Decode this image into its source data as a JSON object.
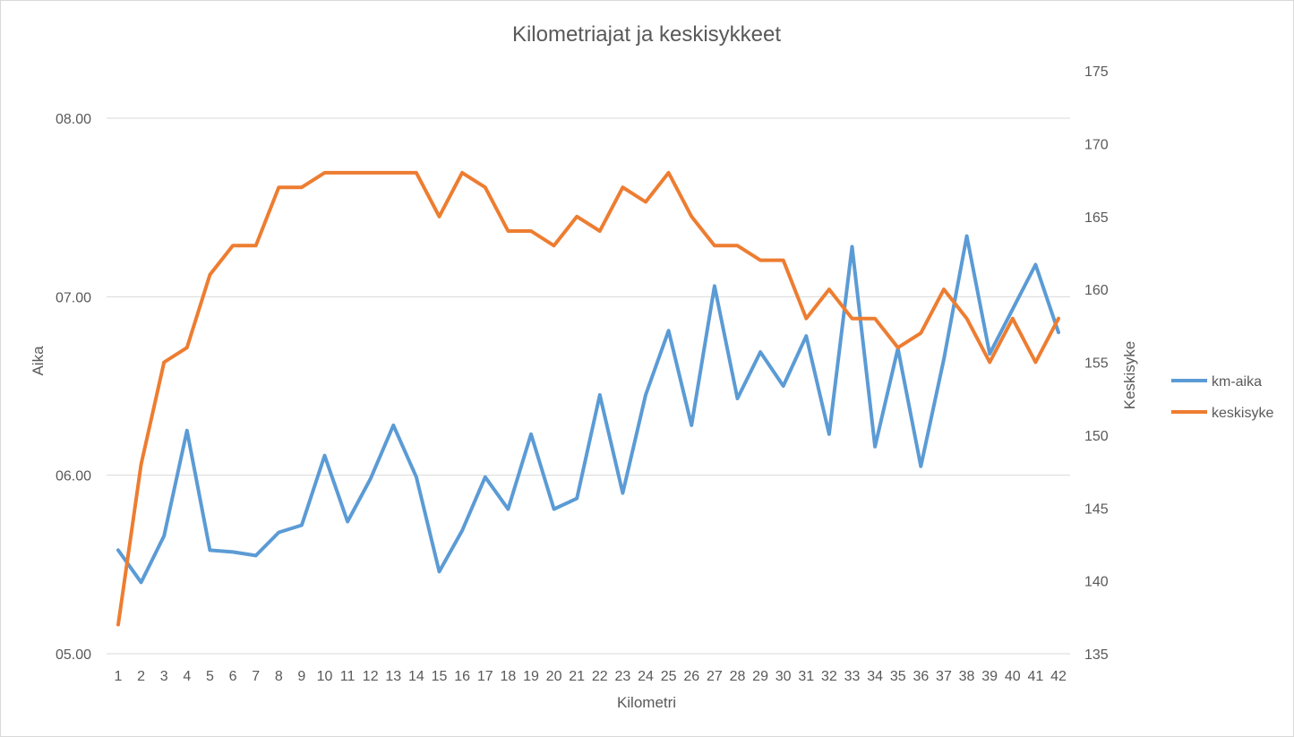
{
  "chart_data": {
    "type": "line",
    "title": "Kilometriajat ja keskisykkeet",
    "xlabel": "Kilometri",
    "ylabel_left": "Aika",
    "ylabel_right": "Keskisyke",
    "categories": [
      "1",
      "2",
      "3",
      "4",
      "5",
      "6",
      "7",
      "8",
      "9",
      "10",
      "11",
      "12",
      "13",
      "14",
      "15",
      "16",
      "17",
      "18",
      "19",
      "20",
      "21",
      "22",
      "23",
      "24",
      "25",
      "26",
      "27",
      "28",
      "29",
      "30",
      "31",
      "32",
      "33",
      "34",
      "35",
      "36",
      "37",
      "38",
      "39",
      "40",
      "41",
      "42"
    ],
    "y_left": {
      "range": [
        5.0,
        8.3
      ],
      "ticks": [
        5.0,
        6.0,
        7.0,
        8.0
      ],
      "tick_labels": [
        "05.00",
        "06.00",
        "07.00",
        "08.00"
      ]
    },
    "y_right": {
      "range": [
        135,
        175
      ],
      "ticks": [
        135,
        140,
        145,
        150,
        155,
        160,
        165,
        170,
        175
      ],
      "tick_labels": [
        "135",
        "140",
        "145",
        "150",
        "155",
        "160",
        "165",
        "170",
        "175"
      ]
    },
    "grid": true,
    "legend_position": "right",
    "series": [
      {
        "name": "km-aika",
        "axis": "left",
        "color": "#5b9bd5",
        "values": [
          5.58,
          5.4,
          5.66,
          6.25,
          5.58,
          5.57,
          5.55,
          5.68,
          5.72,
          6.11,
          5.74,
          5.98,
          6.28,
          5.99,
          5.46,
          5.69,
          5.99,
          5.81,
          6.23,
          5.81,
          5.87,
          6.45,
          5.9,
          6.45,
          6.81,
          6.28,
          7.06,
          6.43,
          6.69,
          6.5,
          6.78,
          6.23,
          7.28,
          6.16,
          6.71,
          6.05,
          6.65,
          7.34,
          6.68,
          6.93,
          7.18,
          6.8
        ]
      },
      {
        "name": "keskisyke",
        "axis": "right",
        "color": "#ed7d31",
        "values": [
          137,
          148,
          155,
          156,
          161,
          163,
          163,
          167,
          167,
          168,
          168,
          168,
          168,
          168,
          165,
          168,
          167,
          164,
          164,
          163,
          165,
          164,
          167,
          166,
          168,
          165,
          163,
          163,
          162,
          162,
          158,
          160,
          158,
          158,
          156,
          157,
          160,
          158,
          155,
          158,
          155,
          158
        ]
      }
    ]
  }
}
